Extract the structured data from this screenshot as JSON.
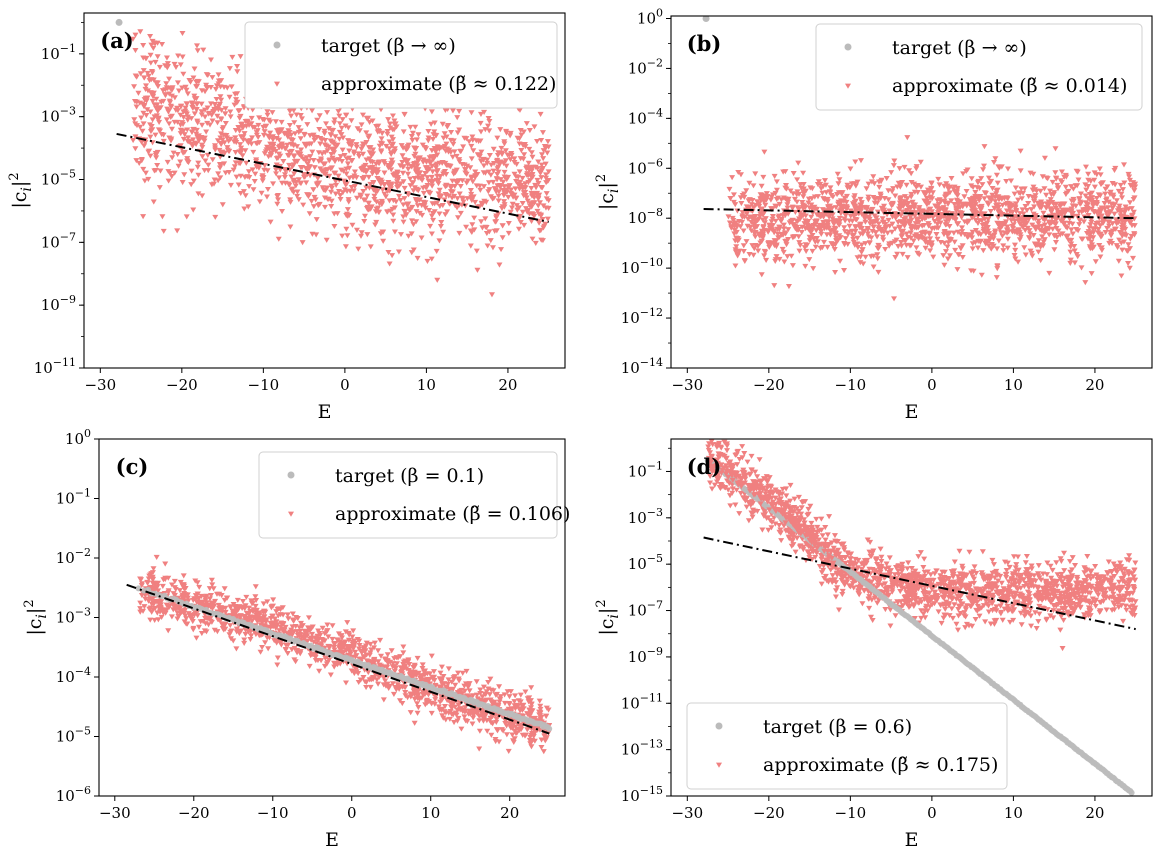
{
  "colors": {
    "target": "#bbbbbb",
    "approx": "#f08080",
    "fit": "#000000"
  },
  "chart_data": [
    {
      "panel": "a",
      "type": "scatter",
      "panel_label": "(a)",
      "xlabel": "E",
      "ylabel": "|c_i|^2",
      "xlim": [
        -32,
        27
      ],
      "ylog_range": [
        -11,
        0.3
      ],
      "xticks": [
        -30,
        -20,
        -10,
        0,
        10,
        20
      ],
      "xtick_labels": [
        "−30",
        "−20",
        "−10",
        "0",
        "10",
        "20"
      ],
      "ytick_exponents": [
        -11,
        -9,
        -7,
        -5,
        -3,
        -1
      ],
      "ytick_mantissa": "10",
      "ytick_labels": [
        "−11",
        "−9",
        "−7",
        "−5",
        "−3",
        "−1"
      ],
      "legend_position": "top-right",
      "target": {
        "label": "target (β → ∞)",
        "kind": "ground",
        "E0": -27.7,
        "log_value": 0
      },
      "approximate": {
        "label": "approximate (β̃ ≈ 0.122)",
        "E_range": [
          -26,
          25
        ],
        "log_trend": [
          [
            -25,
            -2.8
          ],
          [
            -10,
            -3.7
          ],
          [
            0,
            -4.7
          ],
          [
            10,
            -4.8
          ],
          [
            20,
            -5.1
          ],
          [
            25,
            -5.2
          ]
        ],
        "log_spread": 1.1,
        "count": 1800,
        "seed": 11
      },
      "fit_line": {
        "x": [
          -28,
          25
        ],
        "log_y": [
          -3.55,
          -6.35
        ]
      }
    },
    {
      "panel": "b",
      "type": "scatter",
      "panel_label": "(b)",
      "xlabel": "E",
      "ylabel": "|c_i|^2",
      "xlim": [
        -32,
        27
      ],
      "ylog_range": [
        -14,
        0.1
      ],
      "xticks": [
        -30,
        -20,
        -10,
        0,
        10,
        20
      ],
      "xtick_labels": [
        "−30",
        "−20",
        "−10",
        "0",
        "10",
        "20"
      ],
      "ytick_exponents": [
        -14,
        -12,
        -10,
        -8,
        -6,
        -4,
        -2,
        0
      ],
      "ytick_mantissa": "10",
      "ytick_labels": [
        "−14",
        "−12",
        "−10",
        "−8",
        "−6",
        "−4",
        "−2",
        "0"
      ],
      "legend_position": "top-right",
      "target": {
        "label": "target (β → ∞)",
        "kind": "ground",
        "E0": -27.7,
        "log_value": 0
      },
      "approximate": {
        "label": "approximate (β̃ ≈ 0.014)",
        "E_range": [
          -25,
          25
        ],
        "log_trend": [
          [
            -25,
            -8.0
          ],
          [
            0,
            -7.9
          ],
          [
            25,
            -8.0
          ]
        ],
        "log_spread": 0.85,
        "count": 1800,
        "seed": 23
      },
      "fit_line": {
        "x": [
          -28,
          25
        ],
        "log_y": [
          -7.63,
          -8.0
        ]
      }
    },
    {
      "panel": "c",
      "type": "scatter",
      "panel_label": "(c)",
      "xlabel": "E",
      "ylabel": "|c_i|^2",
      "xlim": [
        -32,
        27
      ],
      "ylog_range": [
        -6,
        0
      ],
      "xticks": [
        -30,
        -20,
        -10,
        0,
        10,
        20
      ],
      "xtick_labels": [
        "−30",
        "−20",
        "−10",
        "0",
        "10",
        "20"
      ],
      "ytick_exponents": [
        -6,
        -5,
        -4,
        -3,
        -2,
        -1,
        0
      ],
      "ytick_mantissa": "10",
      "ytick_labels": [
        "−6",
        "−5",
        "−4",
        "−3",
        "−2",
        "−1",
        "0"
      ],
      "legend_position": "top-right",
      "target": {
        "label": "target (β = 0.1)",
        "kind": "line",
        "x_range": [
          -27,
          25
        ],
        "log_y_range": [
          -2.5,
          -4.85
        ],
        "count": 220
      },
      "approximate": {
        "label": "approximate (β̃ = 0.106)",
        "E_range": [
          -27,
          25
        ],
        "log_trend": [
          [
            -27,
            -2.55
          ],
          [
            -10,
            -3.15
          ],
          [
            0,
            -3.65
          ],
          [
            10,
            -4.2
          ],
          [
            20,
            -4.65
          ],
          [
            25,
            -4.9
          ]
        ],
        "log_spread": 0.2,
        "count": 1500,
        "seed": 37
      },
      "fit_line": {
        "x": [
          -28.5,
          25
        ],
        "log_y": [
          -2.45,
          -4.95
        ]
      }
    },
    {
      "panel": "d",
      "type": "scatter",
      "panel_label": "(d)",
      "xlabel": "E",
      "ylabel": "|c_i|^2",
      "xlim": [
        -32,
        27
      ],
      "ylog_range": [
        -15,
        0.4
      ],
      "xticks": [
        -30,
        -20,
        -10,
        0,
        10,
        20
      ],
      "xtick_labels": [
        "−30",
        "−20",
        "−10",
        "0",
        "10",
        "20"
      ],
      "ytick_exponents": [
        -15,
        -13,
        -11,
        -9,
        -7,
        -5,
        -3,
        -1
      ],
      "ytick_mantissa": "10",
      "ytick_labels": [
        "−15",
        "−13",
        "−11",
        "−9",
        "−7",
        "−5",
        "−3",
        "−1"
      ],
      "legend_position": "bottom-left",
      "target": {
        "label": "target (β = 0.6)",
        "kind": "line",
        "x_range": [
          -27.5,
          24.5
        ],
        "log_y_range": [
          -0.5,
          -14.85
        ],
        "count": 260
      },
      "approximate": {
        "label": "approximate (β̃ ≈ 0.175)",
        "E_range": [
          -27.5,
          25
        ],
        "log_trend": [
          [
            -27.5,
            -0.5
          ],
          [
            -20,
            -2.3
          ],
          [
            -15,
            -3.8
          ],
          [
            -11,
            -5.2
          ],
          [
            -5,
            -5.9
          ],
          [
            0,
            -6.2
          ],
          [
            10,
            -6.2
          ],
          [
            20,
            -6.2
          ],
          [
            25,
            -6.1
          ]
        ],
        "log_spread": 0.6,
        "count": 1800,
        "seed": 53
      },
      "fit_line": {
        "x": [
          -28,
          25
        ],
        "log_y": [
          -3.85,
          -7.8
        ]
      }
    }
  ]
}
